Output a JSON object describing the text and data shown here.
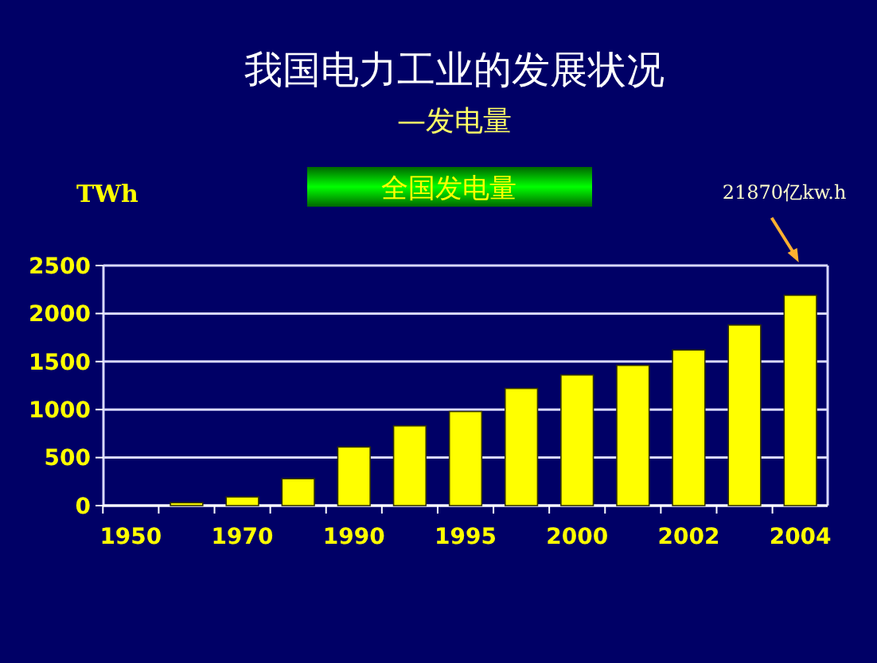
{
  "chart_data": {
    "type": "bar",
    "title": "我国电力工业的发展状况",
    "subtitle": "—发电量",
    "ylabel": "TWh",
    "categories": [
      "1950",
      null,
      "1970",
      null,
      "1990",
      null,
      "1995",
      null,
      "2000",
      null,
      "2002",
      null,
      "2004"
    ],
    "series": [
      {
        "name": "全国发电量",
        "color": "#ffff00",
        "values": [
          0,
          30,
          90,
          280,
          610,
          830,
          980,
          1220,
          1360,
          1460,
          1620,
          1880,
          2190
        ]
      }
    ],
    "ylim": [
      0,
      2500
    ],
    "yticks": [
      0,
      500,
      1000,
      1500,
      2000,
      2500
    ],
    "grid": "y",
    "legend": "top",
    "annotations": [
      "21870亿kw.h"
    ]
  }
}
